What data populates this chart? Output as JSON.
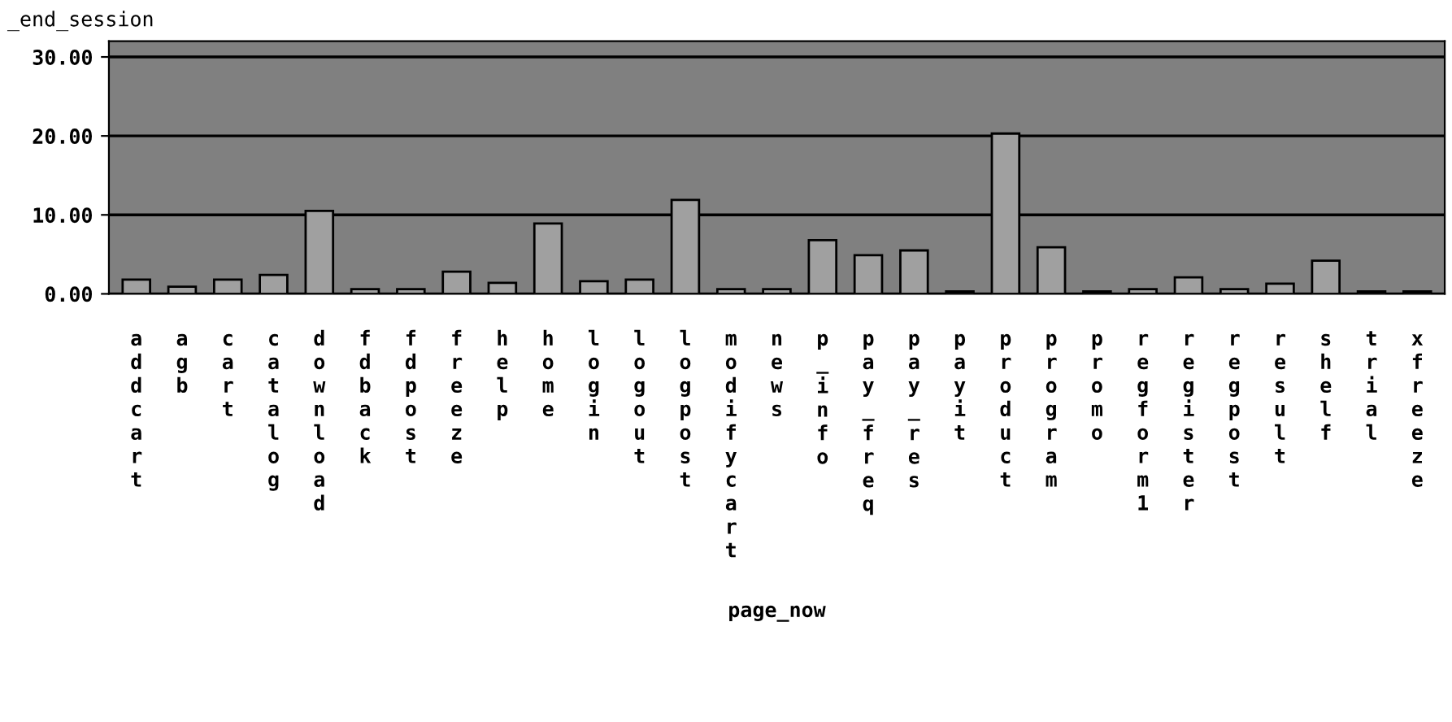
{
  "chart_data": {
    "type": "bar",
    "ylabel": "_end_session",
    "xlabel": "page_now",
    "categories": [
      "addcart",
      "agb",
      "cart",
      "catalog",
      "download",
      "fdback",
      "fdpost",
      "freeze",
      "help",
      "home",
      "login",
      "logout",
      "logpost",
      "modifycart",
      "news",
      "p_info",
      "pay_freq",
      "pay_res",
      "payit",
      "product",
      "program",
      "promo",
      "regform1",
      "register",
      "regpost",
      "result",
      "shelf",
      "trial",
      "xfreeze"
    ],
    "values": [
      1.8,
      0.9,
      1.8,
      2.4,
      10.5,
      0.6,
      0.6,
      2.8,
      1.4,
      8.9,
      1.6,
      1.8,
      11.9,
      0.6,
      0.6,
      6.8,
      4.9,
      5.5,
      0.3,
      20.3,
      5.9,
      0.3,
      0.6,
      2.1,
      0.6,
      1.3,
      4.2,
      0.3,
      0.3
    ],
    "color": "#a0a0a0",
    "ylim": [
      0,
      32
    ],
    "yticks": [
      {
        "value": 0,
        "label": "0.00"
      },
      {
        "value": 10,
        "label": "10.00"
      },
      {
        "value": 20,
        "label": "20.00"
      },
      {
        "value": 30,
        "label": "30.00"
      }
    ],
    "grid": "y"
  }
}
